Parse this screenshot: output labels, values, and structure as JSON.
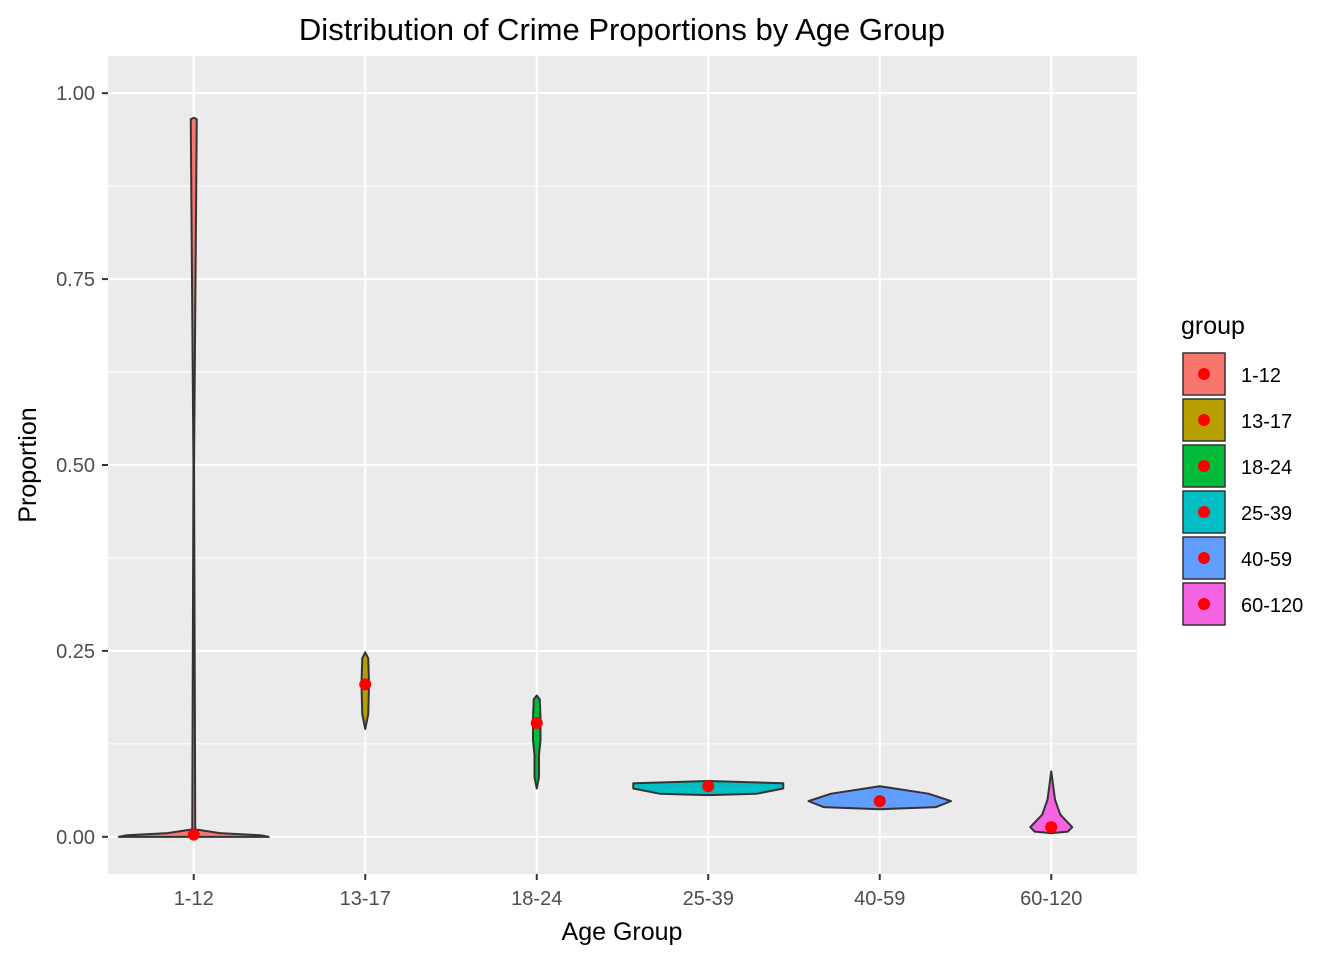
{
  "chart_data": {
    "type": "violin",
    "title": "Distribution of Crime Proportions by Age Group",
    "xlabel": "Age Group",
    "ylabel": "Proportion",
    "ylim": [
      -0.05,
      1.05
    ],
    "yticks": [
      0.0,
      0.25,
      0.5,
      0.75,
      1.0
    ],
    "ytick_labels": [
      "0.00",
      "0.25",
      "0.50",
      "0.75",
      "1.00"
    ],
    "grid": true,
    "legend": {
      "title": "group",
      "placement": "right"
    },
    "categories": [
      "1-12",
      "13-17",
      "18-24",
      "25-39",
      "40-59",
      "60-120"
    ],
    "colors": [
      "#F8766D",
      "#B79F00",
      "#00BA38",
      "#00BFC4",
      "#619CFF",
      "#F564E3"
    ],
    "point_color": "#FF0000",
    "violins": [
      {
        "group": "1-12",
        "min": 0.0,
        "max": 0.967,
        "mean": 0.003,
        "profile": [
          [
            0.0,
            1.0
          ],
          [
            0.002,
            0.9
          ],
          [
            0.005,
            0.35
          ],
          [
            0.01,
            0.02
          ],
          [
            0.5,
            0.004
          ],
          [
            0.965,
            0.04
          ],
          [
            0.967,
            0.0
          ]
        ]
      },
      {
        "group": "13-17",
        "min": 0.145,
        "max": 0.248,
        "mean": 0.205,
        "profile": [
          [
            0.145,
            0.0
          ],
          [
            0.165,
            0.04
          ],
          [
            0.205,
            0.05
          ],
          [
            0.24,
            0.04
          ],
          [
            0.248,
            0.0
          ]
        ]
      },
      {
        "group": "18-24",
        "min": 0.065,
        "max": 0.19,
        "mean": 0.153,
        "profile": [
          [
            0.065,
            0.0
          ],
          [
            0.08,
            0.03
          ],
          [
            0.11,
            0.03
          ],
          [
            0.13,
            0.05
          ],
          [
            0.16,
            0.05
          ],
          [
            0.185,
            0.04
          ],
          [
            0.19,
            0.0
          ]
        ]
      },
      {
        "group": "25-39",
        "min": 0.056,
        "max": 0.075,
        "mean": 0.068,
        "profile": [
          [
            0.056,
            0.0
          ],
          [
            0.058,
            0.65
          ],
          [
            0.065,
            1.0
          ],
          [
            0.072,
            1.0
          ],
          [
            0.075,
            0.0
          ]
        ]
      },
      {
        "group": "40-59",
        "min": 0.037,
        "max": 0.068,
        "mean": 0.048,
        "profile": [
          [
            0.037,
            0.0
          ],
          [
            0.04,
            0.75
          ],
          [
            0.048,
            0.95
          ],
          [
            0.058,
            0.65
          ],
          [
            0.068,
            0.0
          ]
        ]
      },
      {
        "group": "60-120",
        "min": 0.005,
        "max": 0.088,
        "mean": 0.013,
        "profile": [
          [
            0.005,
            0.0
          ],
          [
            0.007,
            0.22
          ],
          [
            0.013,
            0.28
          ],
          [
            0.03,
            0.12
          ],
          [
            0.05,
            0.05
          ],
          [
            0.088,
            0.0
          ]
        ]
      }
    ]
  }
}
